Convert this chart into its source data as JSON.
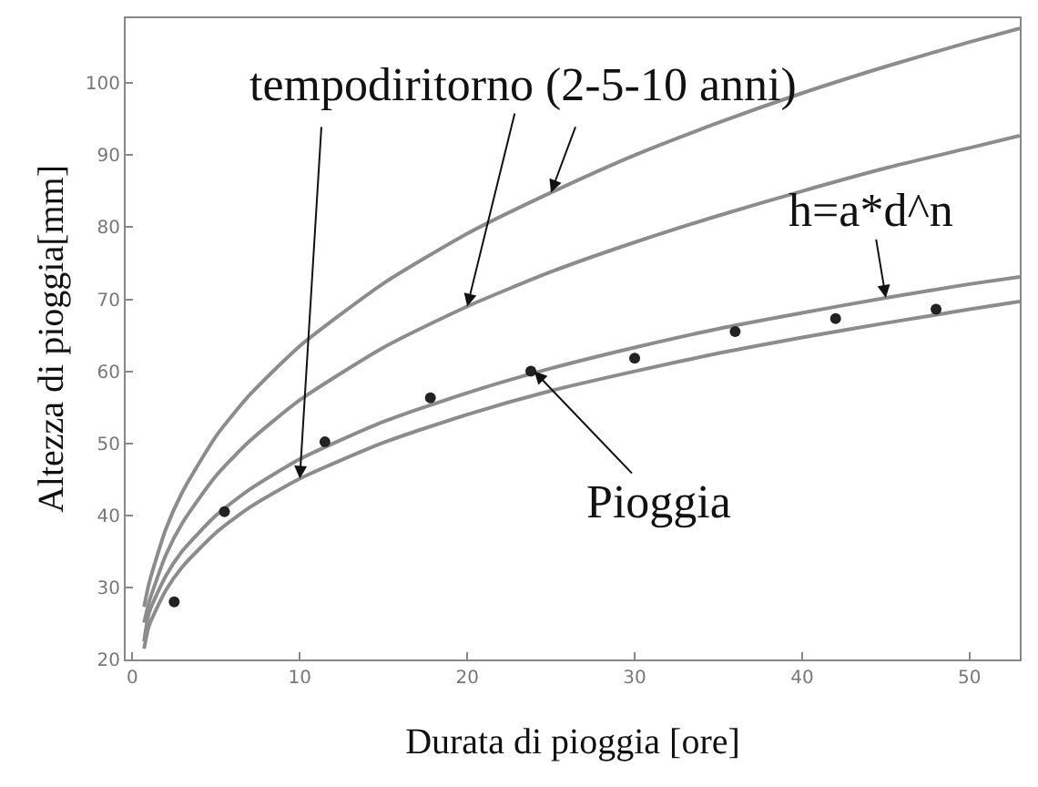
{
  "chart_data": {
    "type": "line",
    "xlabel": "Durata di pioggia [ore]",
    "ylabel": "Altezza di pioggia[mm]",
    "xlim": [
      -0.4,
      53
    ],
    "xticks": [
      0,
      10,
      20,
      30,
      40,
      50
    ],
    "ylim": [
      20,
      109
    ],
    "yticks": [
      20,
      30,
      40,
      50,
      60,
      70,
      80,
      90,
      100
    ],
    "grid": false,
    "line_style": "solid",
    "marker": "none",
    "series": [
      {
        "color": "#8c8c8c",
        "x": [
          0.7,
          1,
          2,
          3,
          5,
          7,
          10,
          15,
          20,
          25,
          30,
          35,
          40,
          45,
          50,
          53
        ],
        "values": [
          27.3,
          30.6,
          38.1,
          43.3,
          51,
          56.7,
          63.5,
          72.2,
          79.1,
          84.8,
          90,
          94.5,
          98.6,
          102.3,
          105.7,
          107.6
        ]
      },
      {
        "color": "#8c8c8c",
        "x": [
          0.7,
          1,
          2,
          3,
          5,
          7,
          10,
          15,
          20,
          25,
          30,
          35,
          40,
          45,
          50,
          53
        ],
        "values": [
          25.1,
          28,
          34.5,
          39,
          45.5,
          50.3,
          56,
          63.3,
          69,
          73.8,
          77.9,
          81.6,
          85,
          88.2,
          91,
          92.7
        ]
      },
      {
        "color": "#8c8c8c",
        "x": [
          0.7,
          1,
          2,
          3,
          5,
          7,
          10,
          15,
          20,
          25,
          30,
          35,
          40,
          45,
          50,
          53
        ],
        "values": [
          22.5,
          26.5,
          31.6,
          35.1,
          40,
          43.6,
          47.8,
          53,
          57,
          60.4,
          63.3,
          65.9,
          68.1,
          70.2,
          72.1,
          73.1
        ]
      },
      {
        "color": "#8c8c8c",
        "x": [
          0.7,
          1,
          2,
          3,
          5,
          7,
          10,
          15,
          20,
          25,
          30,
          35,
          40,
          45,
          50,
          53
        ],
        "values": [
          21.5,
          24.7,
          29.6,
          32.9,
          37.6,
          41.1,
          45.1,
          50.1,
          54,
          57.3,
          60,
          62.5,
          64.7,
          66.7,
          68.6,
          69.7
        ]
      },
      {
        "type": "scatter",
        "marker": "circle",
        "color": "#222222",
        "x": [
          2.5,
          5.5,
          11.5,
          17.8,
          23.8,
          30,
          36,
          42,
          48
        ],
        "values": [
          28,
          40.5,
          50.2,
          56.3,
          60,
          61.8,
          65.5,
          67.3,
          68.6
        ]
      }
    ],
    "annotations": [
      {
        "text": "tempodiritorno (2-5-10 anni)",
        "x": 20,
        "y": 69
      },
      {
        "text": "h=a*d^n",
        "x": 45,
        "y": 70.2
      },
      {
        "text": "Pioggia",
        "x": 24,
        "y": 60
      }
    ]
  }
}
